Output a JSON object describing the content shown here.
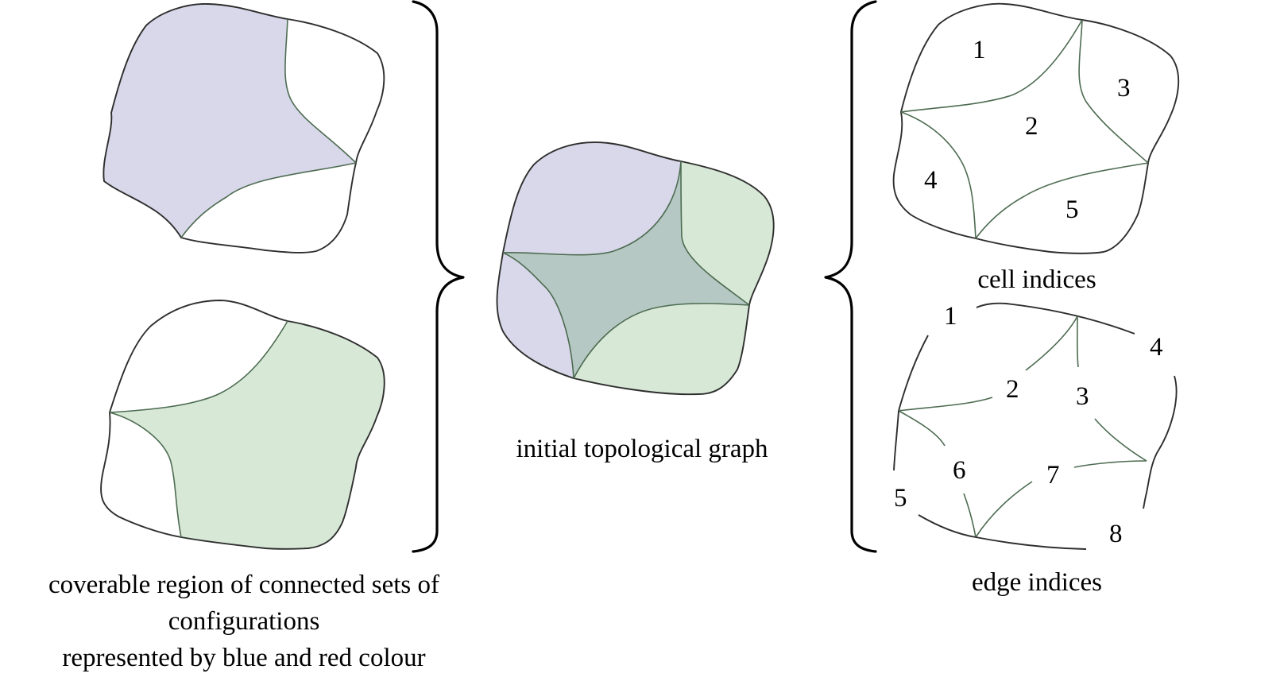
{
  "colors": {
    "blue_region": "#d8d8ea",
    "red_region": "#d7e9d6",
    "overlap_region": "#b5c8c3",
    "outline": "#2e2e2e",
    "inner_edge": "#4d6b51"
  },
  "captions": {
    "coverable_line1": "coverable region of connected sets of",
    "coverable_line2": "configurations",
    "coverable_line3": "represented by blue and red colour",
    "initial": "initial topological graph",
    "cell_indices": "cell indices",
    "edge_indices": "edge indices"
  },
  "cell_labels": [
    "1",
    "2",
    "3",
    "4",
    "5"
  ],
  "edge_labels": [
    "1",
    "2",
    "3",
    "4",
    "5",
    "6",
    "7",
    "8"
  ]
}
